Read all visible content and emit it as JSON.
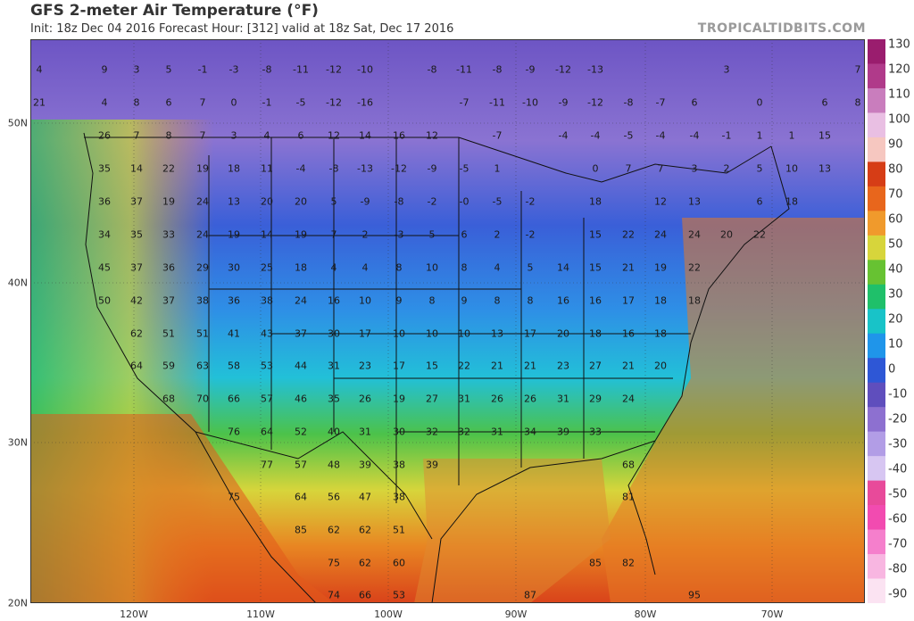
{
  "header": {
    "title": "GFS 2-meter Air Temperature (°F)",
    "subtitle": "Init: 18z Dec 04 2016   Forecast Hour: [312]   valid at 18z Sat, Dec 17 2016",
    "brand": "TROPICALTIDBITS.COM"
  },
  "colorbar": {
    "labels": [
      "130",
      "120",
      "110",
      "100",
      "90",
      "80",
      "70",
      "60",
      "50",
      "40",
      "30",
      "20",
      "10",
      "0",
      "-10",
      "-20",
      "-30",
      "-40",
      "-50",
      "-60",
      "-70",
      "-80",
      "-90"
    ],
    "stops": [
      "#9a1d6e",
      "#b03a8a",
      "#c97dbd",
      "#e9bfe3",
      "#f6c7c0",
      "#d63d16",
      "#e8661c",
      "#f09a2c",
      "#d7d53b",
      "#67c232",
      "#1fc06a",
      "#18c3c8",
      "#1f95ea",
      "#2e57d6",
      "#5f4ebd",
      "#8d70d0",
      "#b29de6",
      "#d7c6f2",
      "#e84a9a",
      "#f24bb0",
      "#f57fcc",
      "#f8b6e1",
      "#fbe3f2"
    ]
  },
  "axes": {
    "lat_labels": [
      "50N",
      "40N",
      "30N",
      "20N"
    ],
    "lon_labels": [
      "120W",
      "110W",
      "100W",
      "90W",
      "80W",
      "70W"
    ]
  },
  "temps": [
    {
      "v": "4",
      "c": [
        44,
        78
      ]
    },
    {
      "v": "9",
      "c": [
        117,
        78
      ]
    },
    {
      "v": "3",
      "c": [
        153,
        78
      ]
    },
    {
      "v": "5",
      "c": [
        189,
        78
      ]
    },
    {
      "v": "-1",
      "c": [
        227,
        78
      ]
    },
    {
      "v": "-3",
      "c": [
        262,
        78
      ]
    },
    {
      "v": "-8",
      "c": [
        299,
        78
      ]
    },
    {
      "v": "-11",
      "c": [
        337,
        78
      ]
    },
    {
      "v": "-12",
      "c": [
        374,
        78
      ]
    },
    {
      "v": "-10",
      "c": [
        409,
        78
      ]
    },
    {
      "v": "-8",
      "c": [
        484,
        78
      ]
    },
    {
      "v": "-11",
      "c": [
        520,
        78
      ]
    },
    {
      "v": "-8",
      "c": [
        557,
        78
      ]
    },
    {
      "v": "-9",
      "c": [
        594,
        78
      ]
    },
    {
      "v": "-12",
      "c": [
        631,
        78
      ]
    },
    {
      "v": "-13",
      "c": [
        667,
        78
      ]
    },
    {
      "v": "3",
      "c": [
        814,
        78
      ]
    },
    {
      "v": "7",
      "c": [
        961,
        78
      ]
    },
    {
      "v": "21",
      "c": [
        44,
        115
      ]
    },
    {
      "v": "4",
      "c": [
        117,
        115
      ]
    },
    {
      "v": "8",
      "c": [
        153,
        115
      ]
    },
    {
      "v": "6",
      "c": [
        189,
        115
      ]
    },
    {
      "v": "7",
      "c": [
        227,
        115
      ]
    },
    {
      "v": "0",
      "c": [
        262,
        115
      ]
    },
    {
      "v": "-1",
      "c": [
        299,
        115
      ]
    },
    {
      "v": "-5",
      "c": [
        337,
        115
      ]
    },
    {
      "v": "-12",
      "c": [
        374,
        115
      ]
    },
    {
      "v": "-16",
      "c": [
        409,
        115
      ]
    },
    {
      "v": "-7",
      "c": [
        520,
        115
      ]
    },
    {
      "v": "-11",
      "c": [
        557,
        115
      ]
    },
    {
      "v": "-10",
      "c": [
        594,
        115
      ]
    },
    {
      "v": "-9",
      "c": [
        631,
        115
      ]
    },
    {
      "v": "-12",
      "c": [
        667,
        115
      ]
    },
    {
      "v": "-8",
      "c": [
        704,
        115
      ]
    },
    {
      "v": "-7",
      "c": [
        740,
        115
      ]
    },
    {
      "v": "6",
      "c": [
        778,
        115
      ]
    },
    {
      "v": "0",
      "c": [
        851,
        115
      ]
    },
    {
      "v": "6",
      "c": [
        924,
        115
      ]
    },
    {
      "v": "8",
      "c": [
        961,
        115
      ]
    },
    {
      "v": "26",
      "c": [
        117,
        152
      ]
    },
    {
      "v": "7",
      "c": [
        153,
        152
      ]
    },
    {
      "v": "8",
      "c": [
        189,
        152
      ]
    },
    {
      "v": "7",
      "c": [
        227,
        152
      ]
    },
    {
      "v": "3",
      "c": [
        262,
        152
      ]
    },
    {
      "v": "4",
      "c": [
        299,
        152
      ]
    },
    {
      "v": "6",
      "c": [
        337,
        152
      ]
    },
    {
      "v": "12",
      "c": [
        374,
        152
      ]
    },
    {
      "v": "14",
      "c": [
        409,
        152
      ]
    },
    {
      "v": "16",
      "c": [
        447,
        152
      ]
    },
    {
      "v": "12",
      "c": [
        484,
        152
      ]
    },
    {
      "v": "-7",
      "c": [
        557,
        152
      ]
    },
    {
      "v": "-4",
      "c": [
        631,
        152
      ]
    },
    {
      "v": "-4",
      "c": [
        667,
        152
      ]
    },
    {
      "v": "-5",
      "c": [
        704,
        152
      ]
    },
    {
      "v": "-4",
      "c": [
        740,
        152
      ]
    },
    {
      "v": "-4",
      "c": [
        778,
        152
      ]
    },
    {
      "v": "-1",
      "c": [
        814,
        152
      ]
    },
    {
      "v": "1",
      "c": [
        851,
        152
      ]
    },
    {
      "v": "1",
      "c": [
        887,
        152
      ]
    },
    {
      "v": "15",
      "c": [
        924,
        152
      ]
    },
    {
      "v": "35",
      "c": [
        117,
        189
      ]
    },
    {
      "v": "14",
      "c": [
        153,
        189
      ]
    },
    {
      "v": "22",
      "c": [
        189,
        189
      ]
    },
    {
      "v": "19",
      "c": [
        227,
        189
      ]
    },
    {
      "v": "18",
      "c": [
        262,
        189
      ]
    },
    {
      "v": "11",
      "c": [
        299,
        189
      ]
    },
    {
      "v": "-4",
      "c": [
        337,
        189
      ]
    },
    {
      "v": "-8",
      "c": [
        374,
        189
      ]
    },
    {
      "v": "-13",
      "c": [
        409,
        189
      ]
    },
    {
      "v": "-12",
      "c": [
        447,
        189
      ]
    },
    {
      "v": "-9",
      "c": [
        484,
        189
      ]
    },
    {
      "v": "-5",
      "c": [
        520,
        189
      ]
    },
    {
      "v": "1",
      "c": [
        557,
        189
      ]
    },
    {
      "v": "0",
      "c": [
        667,
        189
      ]
    },
    {
      "v": "7",
      "c": [
        704,
        189
      ]
    },
    {
      "v": "7",
      "c": [
        740,
        189
      ]
    },
    {
      "v": "3",
      "c": [
        778,
        189
      ]
    },
    {
      "v": "2",
      "c": [
        814,
        189
      ]
    },
    {
      "v": "5",
      "c": [
        851,
        189
      ]
    },
    {
      "v": "10",
      "c": [
        887,
        189
      ]
    },
    {
      "v": "13",
      "c": [
        924,
        189
      ]
    },
    {
      "v": "36",
      "c": [
        117,
        226
      ]
    },
    {
      "v": "37",
      "c": [
        153,
        226
      ]
    },
    {
      "v": "19",
      "c": [
        189,
        226
      ]
    },
    {
      "v": "24",
      "c": [
        227,
        226
      ]
    },
    {
      "v": "13",
      "c": [
        262,
        226
      ]
    },
    {
      "v": "20",
      "c": [
        299,
        226
      ]
    },
    {
      "v": "20",
      "c": [
        337,
        226
      ]
    },
    {
      "v": "5",
      "c": [
        374,
        226
      ]
    },
    {
      "v": "-9",
      "c": [
        409,
        226
      ]
    },
    {
      "v": "-8",
      "c": [
        447,
        226
      ]
    },
    {
      "v": "-2",
      "c": [
        484,
        226
      ]
    },
    {
      "v": "-0",
      "c": [
        520,
        226
      ]
    },
    {
      "v": "-5",
      "c": [
        557,
        226
      ]
    },
    {
      "v": "-2",
      "c": [
        594,
        226
      ]
    },
    {
      "v": "18",
      "c": [
        667,
        226
      ]
    },
    {
      "v": "12",
      "c": [
        740,
        226
      ]
    },
    {
      "v": "13",
      "c": [
        778,
        226
      ]
    },
    {
      "v": "6",
      "c": [
        851,
        226
      ]
    },
    {
      "v": "18",
      "c": [
        887,
        226
      ]
    },
    {
      "v": "34",
      "c": [
        117,
        263
      ]
    },
    {
      "v": "35",
      "c": [
        153,
        263
      ]
    },
    {
      "v": "33",
      "c": [
        189,
        263
      ]
    },
    {
      "v": "24",
      "c": [
        227,
        263
      ]
    },
    {
      "v": "19",
      "c": [
        262,
        263
      ]
    },
    {
      "v": "14",
      "c": [
        299,
        263
      ]
    },
    {
      "v": "19",
      "c": [
        337,
        263
      ]
    },
    {
      "v": "7",
      "c": [
        374,
        263
      ]
    },
    {
      "v": "2",
      "c": [
        409,
        263
      ]
    },
    {
      "v": "-3",
      "c": [
        447,
        263
      ]
    },
    {
      "v": "5",
      "c": [
        484,
        263
      ]
    },
    {
      "v": "6",
      "c": [
        520,
        263
      ]
    },
    {
      "v": "2",
      "c": [
        557,
        263
      ]
    },
    {
      "v": "-2",
      "c": [
        594,
        263
      ]
    },
    {
      "v": "15",
      "c": [
        667,
        263
      ]
    },
    {
      "v": "22",
      "c": [
        704,
        263
      ]
    },
    {
      "v": "24",
      "c": [
        740,
        263
      ]
    },
    {
      "v": "24",
      "c": [
        778,
        263
      ]
    },
    {
      "v": "20",
      "c": [
        814,
        263
      ]
    },
    {
      "v": "22",
      "c": [
        851,
        263
      ]
    },
    {
      "v": "45",
      "c": [
        117,
        300
      ]
    },
    {
      "v": "37",
      "c": [
        153,
        300
      ]
    },
    {
      "v": "36",
      "c": [
        189,
        300
      ]
    },
    {
      "v": "29",
      "c": [
        227,
        300
      ]
    },
    {
      "v": "30",
      "c": [
        262,
        300
      ]
    },
    {
      "v": "25",
      "c": [
        299,
        300
      ]
    },
    {
      "v": "18",
      "c": [
        337,
        300
      ]
    },
    {
      "v": "4",
      "c": [
        374,
        300
      ]
    },
    {
      "v": "4",
      "c": [
        409,
        300
      ]
    },
    {
      "v": "8",
      "c": [
        447,
        300
      ]
    },
    {
      "v": "10",
      "c": [
        484,
        300
      ]
    },
    {
      "v": "8",
      "c": [
        520,
        300
      ]
    },
    {
      "v": "4",
      "c": [
        557,
        300
      ]
    },
    {
      "v": "5",
      "c": [
        594,
        300
      ]
    },
    {
      "v": "14",
      "c": [
        631,
        300
      ]
    },
    {
      "v": "15",
      "c": [
        667,
        300
      ]
    },
    {
      "v": "21",
      "c": [
        704,
        300
      ]
    },
    {
      "v": "19",
      "c": [
        740,
        300
      ]
    },
    {
      "v": "22",
      "c": [
        778,
        300
      ]
    },
    {
      "v": "50",
      "c": [
        117,
        337
      ]
    },
    {
      "v": "42",
      "c": [
        153,
        337
      ]
    },
    {
      "v": "37",
      "c": [
        189,
        337
      ]
    },
    {
      "v": "38",
      "c": [
        227,
        337
      ]
    },
    {
      "v": "36",
      "c": [
        262,
        337
      ]
    },
    {
      "v": "38",
      "c": [
        299,
        337
      ]
    },
    {
      "v": "24",
      "c": [
        337,
        337
      ]
    },
    {
      "v": "16",
      "c": [
        374,
        337
      ]
    },
    {
      "v": "10",
      "c": [
        409,
        337
      ]
    },
    {
      "v": "9",
      "c": [
        447,
        337
      ]
    },
    {
      "v": "8",
      "c": [
        484,
        337
      ]
    },
    {
      "v": "9",
      "c": [
        520,
        337
      ]
    },
    {
      "v": "8",
      "c": [
        557,
        337
      ]
    },
    {
      "v": "8",
      "c": [
        594,
        337
      ]
    },
    {
      "v": "16",
      "c": [
        631,
        337
      ]
    },
    {
      "v": "16",
      "c": [
        667,
        337
      ]
    },
    {
      "v": "17",
      "c": [
        704,
        337
      ]
    },
    {
      "v": "18",
      "c": [
        740,
        337
      ]
    },
    {
      "v": "18",
      "c": [
        778,
        337
      ]
    },
    {
      "v": "62",
      "c": [
        153,
        374
      ]
    },
    {
      "v": "51",
      "c": [
        189,
        374
      ]
    },
    {
      "v": "51",
      "c": [
        227,
        374
      ]
    },
    {
      "v": "41",
      "c": [
        262,
        374
      ]
    },
    {
      "v": "43",
      "c": [
        299,
        374
      ]
    },
    {
      "v": "37",
      "c": [
        337,
        374
      ]
    },
    {
      "v": "30",
      "c": [
        374,
        374
      ]
    },
    {
      "v": "17",
      "c": [
        409,
        374
      ]
    },
    {
      "v": "10",
      "c": [
        447,
        374
      ]
    },
    {
      "v": "10",
      "c": [
        484,
        374
      ]
    },
    {
      "v": "10",
      "c": [
        520,
        374
      ]
    },
    {
      "v": "13",
      "c": [
        557,
        374
      ]
    },
    {
      "v": "17",
      "c": [
        594,
        374
      ]
    },
    {
      "v": "20",
      "c": [
        631,
        374
      ]
    },
    {
      "v": "18",
      "c": [
        667,
        374
      ]
    },
    {
      "v": "16",
      "c": [
        704,
        374
      ]
    },
    {
      "v": "18",
      "c": [
        740,
        374
      ]
    },
    {
      "v": "64",
      "c": [
        153,
        410
      ]
    },
    {
      "v": "59",
      "c": [
        189,
        410
      ]
    },
    {
      "v": "63",
      "c": [
        227,
        410
      ]
    },
    {
      "v": "58",
      "c": [
        262,
        410
      ]
    },
    {
      "v": "53",
      "c": [
        299,
        410
      ]
    },
    {
      "v": "44",
      "c": [
        337,
        410
      ]
    },
    {
      "v": "31",
      "c": [
        374,
        410
      ]
    },
    {
      "v": "23",
      "c": [
        409,
        410
      ]
    },
    {
      "v": "17",
      "c": [
        447,
        410
      ]
    },
    {
      "v": "15",
      "c": [
        484,
        410
      ]
    },
    {
      "v": "22",
      "c": [
        520,
        410
      ]
    },
    {
      "v": "21",
      "c": [
        557,
        410
      ]
    },
    {
      "v": "21",
      "c": [
        594,
        410
      ]
    },
    {
      "v": "23",
      "c": [
        631,
        410
      ]
    },
    {
      "v": "27",
      "c": [
        667,
        410
      ]
    },
    {
      "v": "21",
      "c": [
        704,
        410
      ]
    },
    {
      "v": "20",
      "c": [
        740,
        410
      ]
    },
    {
      "v": "68",
      "c": [
        189,
        447
      ]
    },
    {
      "v": "70",
      "c": [
        227,
        447
      ]
    },
    {
      "v": "66",
      "c": [
        262,
        447
      ]
    },
    {
      "v": "57",
      "c": [
        299,
        447
      ]
    },
    {
      "v": "46",
      "c": [
        337,
        447
      ]
    },
    {
      "v": "35",
      "c": [
        374,
        447
      ]
    },
    {
      "v": "26",
      "c": [
        409,
        447
      ]
    },
    {
      "v": "19",
      "c": [
        447,
        447
      ]
    },
    {
      "v": "27",
      "c": [
        484,
        447
      ]
    },
    {
      "v": "31",
      "c": [
        520,
        447
      ]
    },
    {
      "v": "26",
      "c": [
        557,
        447
      ]
    },
    {
      "v": "26",
      "c": [
        594,
        447
      ]
    },
    {
      "v": "31",
      "c": [
        631,
        447
      ]
    },
    {
      "v": "29",
      "c": [
        667,
        447
      ]
    },
    {
      "v": "24",
      "c": [
        704,
        447
      ]
    },
    {
      "v": "76",
      "c": [
        262,
        484
      ]
    },
    {
      "v": "64",
      "c": [
        299,
        484
      ]
    },
    {
      "v": "52",
      "c": [
        337,
        484
      ]
    },
    {
      "v": "40",
      "c": [
        374,
        484
      ]
    },
    {
      "v": "31",
      "c": [
        409,
        484
      ]
    },
    {
      "v": "30",
      "c": [
        447,
        484
      ]
    },
    {
      "v": "32",
      "c": [
        484,
        484
      ]
    },
    {
      "v": "32",
      "c": [
        520,
        484
      ]
    },
    {
      "v": "31",
      "c": [
        557,
        484
      ]
    },
    {
      "v": "34",
      "c": [
        594,
        484
      ]
    },
    {
      "v": "39",
      "c": [
        631,
        484
      ]
    },
    {
      "v": "33",
      "c": [
        667,
        484
      ]
    },
    {
      "v": "77",
      "c": [
        299,
        521
      ]
    },
    {
      "v": "57",
      "c": [
        337,
        521
      ]
    },
    {
      "v": "48",
      "c": [
        374,
        521
      ]
    },
    {
      "v": "39",
      "c": [
        409,
        521
      ]
    },
    {
      "v": "38",
      "c": [
        447,
        521
      ]
    },
    {
      "v": "39",
      "c": [
        484,
        521
      ]
    },
    {
      "v": "68",
      "c": [
        704,
        521
      ]
    },
    {
      "v": "75",
      "c": [
        262,
        557
      ]
    },
    {
      "v": "64",
      "c": [
        337,
        557
      ]
    },
    {
      "v": "56",
      "c": [
        374,
        557
      ]
    },
    {
      "v": "47",
      "c": [
        409,
        557
      ]
    },
    {
      "v": "38",
      "c": [
        447,
        557
      ]
    },
    {
      "v": "81",
      "c": [
        704,
        557
      ]
    },
    {
      "v": "85",
      "c": [
        337,
        594
      ]
    },
    {
      "v": "62",
      "c": [
        374,
        594
      ]
    },
    {
      "v": "62",
      "c": [
        409,
        594
      ]
    },
    {
      "v": "51",
      "c": [
        447,
        594
      ]
    },
    {
      "v": "75",
      "c": [
        374,
        631
      ]
    },
    {
      "v": "62",
      "c": [
        409,
        631
      ]
    },
    {
      "v": "60",
      "c": [
        447,
        631
      ]
    },
    {
      "v": "85",
      "c": [
        667,
        631
      ]
    },
    {
      "v": "82",
      "c": [
        704,
        631
      ]
    },
    {
      "v": "74",
      "c": [
        374,
        667
      ]
    },
    {
      "v": "66",
      "c": [
        409,
        667
      ]
    },
    {
      "v": "53",
      "c": [
        447,
        667
      ]
    },
    {
      "v": "87",
      "c": [
        594,
        667
      ]
    },
    {
      "v": "95",
      "c": [
        778,
        667
      ]
    }
  ]
}
